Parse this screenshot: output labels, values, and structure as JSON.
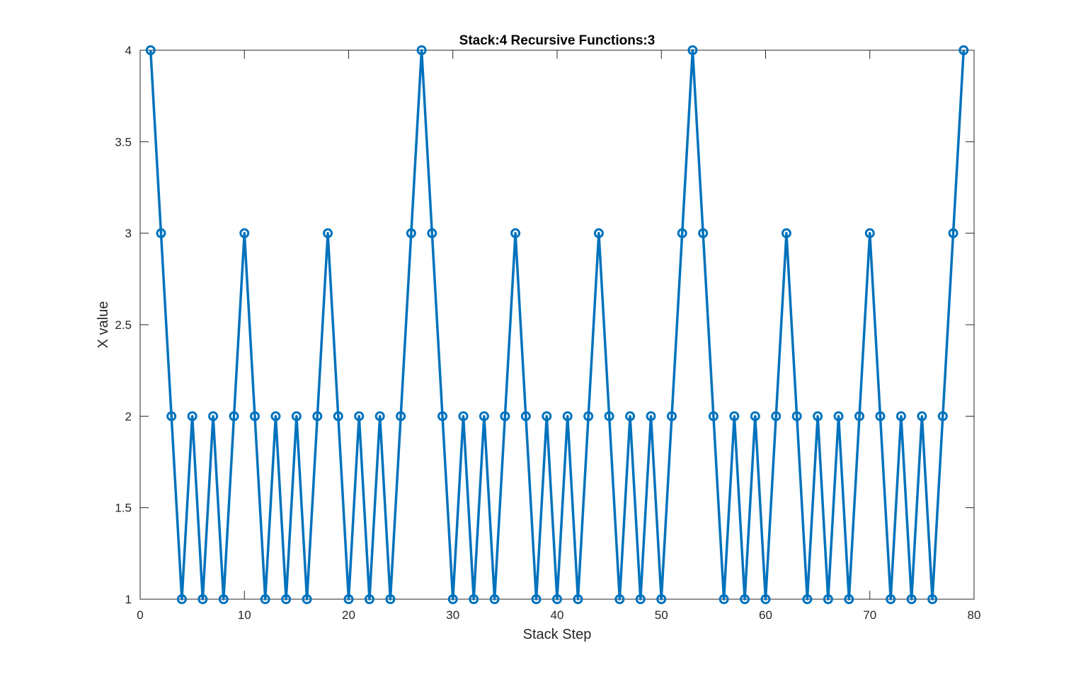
{
  "chart_data": {
    "type": "line",
    "title": "Stack:4   Recursive Functions:3",
    "xlabel": "Stack Step",
    "ylabel": "X value",
    "xlim": [
      0,
      80
    ],
    "ylim": [
      1,
      4
    ],
    "xticks": [
      0,
      10,
      20,
      30,
      40,
      50,
      60,
      70,
      80
    ],
    "xtick_labels": [
      "0",
      "10",
      "20",
      "30",
      "40",
      "50",
      "60",
      "70",
      "80"
    ],
    "yticks": [
      1,
      1.5,
      2,
      2.5,
      3,
      3.5,
      4
    ],
    "ytick_labels": [
      "1",
      "1.5",
      "2",
      "2.5",
      "3",
      "3.5",
      "4"
    ],
    "grid": false,
    "series": [
      {
        "color": "#0072BD",
        "marker": "circle",
        "x": [
          1,
          2,
          3,
          4,
          5,
          6,
          7,
          8,
          9,
          10,
          11,
          12,
          13,
          14,
          15,
          16,
          17,
          18,
          19,
          20,
          21,
          22,
          23,
          24,
          25,
          26,
          27,
          28,
          29,
          30,
          31,
          32,
          33,
          34,
          35,
          36,
          37,
          38,
          39,
          40,
          41,
          42,
          43,
          44,
          45,
          46,
          47,
          48,
          49,
          50,
          51,
          52,
          53,
          54,
          55,
          56,
          57,
          58,
          59,
          60,
          61,
          62,
          63,
          64,
          65,
          66,
          67,
          68,
          69,
          70,
          71,
          72,
          73,
          74,
          75,
          76,
          77,
          78,
          79
        ],
        "values": [
          4,
          3,
          2,
          1,
          2,
          1,
          2,
          1,
          2,
          3,
          2,
          1,
          2,
          1,
          2,
          1,
          2,
          3,
          2,
          1,
          2,
          1,
          2,
          1,
          2,
          3,
          4,
          3,
          2,
          1,
          2,
          1,
          2,
          1,
          2,
          3,
          2,
          1,
          2,
          1,
          2,
          1,
          2,
          3,
          2,
          1,
          2,
          1,
          2,
          1,
          2,
          3,
          4,
          3,
          2,
          1,
          2,
          1,
          2,
          1,
          2,
          3,
          2,
          1,
          2,
          1,
          2,
          1,
          2,
          3,
          2,
          1,
          2,
          1,
          2,
          1,
          2,
          3,
          4
        ]
      }
    ]
  }
}
